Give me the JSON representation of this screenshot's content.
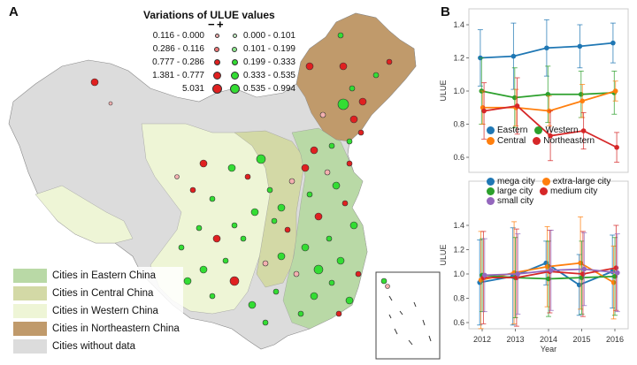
{
  "panel_a": {
    "letter": "A",
    "map_title": "Variations of ULUE values",
    "minus_sign": "−",
    "plus_sign": "+",
    "size_legend": [
      {
        "neg": "0.116 - 0.000",
        "pos": "0.000 - 0.101"
      },
      {
        "neg": "0.286 - 0.116",
        "pos": "0.101 - 0.199"
      },
      {
        "neg": "0.777 - 0.286",
        "pos": "0.199 - 0.333"
      },
      {
        "neg": "1.381 - 0.777",
        "pos": "0.333 - 0.535"
      },
      {
        "neg": "5.031",
        "pos": "0.535 - 0.994"
      }
    ],
    "region_legend": [
      {
        "label": "Cities in Eastern China",
        "color": "#b9d9a6"
      },
      {
        "label": "Cities in Central China",
        "color": "#d3d9a6"
      },
      {
        "label": "Cities in Western China",
        "color": "#eef5d6"
      },
      {
        "label": "Cities in Northeastern China",
        "color": "#c09a6b"
      },
      {
        "label": "Cities without data",
        "color": "#dcdcdc"
      }
    ],
    "colors": {
      "negative": "#e02020",
      "positive": "#33dd33",
      "no_data": "#dcdcdc"
    }
  },
  "panel_b": {
    "letter": "B"
  },
  "chart_data": [
    {
      "type": "line",
      "x": [
        2012,
        2013,
        2014,
        2015,
        2016
      ],
      "ylabel": "ULUE",
      "xlabel": "",
      "ylim": [
        0.6,
        1.4
      ],
      "yticks": [
        0.6,
        0.8,
        1.0,
        1.2,
        1.4
      ],
      "error_bars": true,
      "legend_position": "lower-center",
      "series": [
        {
          "name": "Eastern",
          "color": "#1f77b4",
          "values": [
            1.2,
            1.21,
            1.26,
            1.27,
            1.29
          ],
          "err": [
            0.17,
            0.2,
            0.17,
            0.13,
            0.12
          ]
        },
        {
          "name": "Western",
          "color": "#2ca02c",
          "values": [
            1.0,
            0.96,
            0.98,
            0.98,
            0.99
          ],
          "err": [
            0.2,
            0.18,
            0.17,
            0.14,
            0.13
          ]
        },
        {
          "name": "Central",
          "color": "#ff7f0e",
          "values": [
            0.9,
            0.9,
            0.88,
            0.94,
            1.0
          ],
          "err": [
            0.1,
            0.11,
            0.09,
            0.1,
            0.06
          ]
        },
        {
          "name": "Northeastern",
          "color": "#d62728",
          "values": [
            0.88,
            0.91,
            0.73,
            0.76,
            0.66
          ],
          "err": [
            0.17,
            0.17,
            0.15,
            0.11,
            0.09
          ]
        }
      ]
    },
    {
      "type": "line",
      "x": [
        2012,
        2013,
        2014,
        2015,
        2016
      ],
      "ylabel": "ULUE",
      "xlabel": "Year",
      "ylim": [
        0.6,
        1.4
      ],
      "yticks": [
        0.6,
        0.8,
        1.0,
        1.2,
        1.4
      ],
      "error_bars": true,
      "legend_position": "top",
      "series": [
        {
          "name": "mega city",
          "color": "#1f77b4",
          "values": [
            0.93,
            0.98,
            1.09,
            0.91,
            1.02
          ],
          "err": [
            0.35,
            0.4,
            0.18,
            0.25,
            0.3
          ]
        },
        {
          "name": "extra-large city",
          "color": "#ff7f0e",
          "values": [
            0.95,
            1.01,
            1.06,
            1.09,
            0.93
          ],
          "err": [
            0.4,
            0.42,
            0.33,
            0.38,
            0.3
          ]
        },
        {
          "name": "large city",
          "color": "#2ca02c",
          "values": [
            0.99,
            0.97,
            0.96,
            0.97,
            0.98
          ],
          "err": [
            0.3,
            0.33,
            0.31,
            0.3,
            0.32
          ]
        },
        {
          "name": "medium city",
          "color": "#d62728",
          "values": [
            0.97,
            0.97,
            1.02,
            1.0,
            1.05
          ],
          "err": [
            0.38,
            0.4,
            0.34,
            0.35,
            0.35
          ]
        },
        {
          "name": "small  city",
          "color": "#9467bd",
          "values": [
            0.99,
            1.0,
            1.03,
            1.04,
            1.01
          ],
          "err": [
            0.3,
            0.33,
            0.33,
            0.3,
            0.32
          ]
        }
      ]
    }
  ]
}
